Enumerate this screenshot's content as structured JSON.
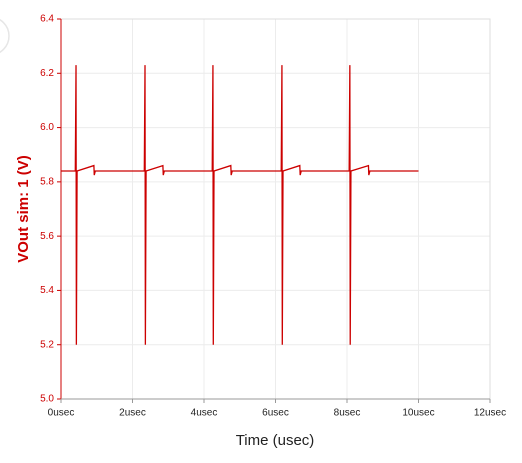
{
  "chart_data": {
    "type": "line",
    "x_label": "Time (usec)",
    "y_label": "VOut sim: 1 (V)",
    "color": "#cc0000",
    "grid": true,
    "xlim": [
      0,
      12
    ],
    "xticks": [
      {
        "value": 0,
        "label": "0usec"
      },
      {
        "value": 2,
        "label": "2usec"
      },
      {
        "value": 4,
        "label": "4usec"
      },
      {
        "value": 6,
        "label": "6usec"
      },
      {
        "value": 8,
        "label": "8usec"
      },
      {
        "value": 10,
        "label": "10usec"
      },
      {
        "value": 12,
        "label": "12usec"
      }
    ],
    "ylim": [
      5,
      6.4
    ],
    "yticks": [
      {
        "value": 5,
        "label": "5.0"
      },
      5.2,
      5.4,
      5.6,
      5.8,
      {
        "value": 6,
        "label": "6.0"
      },
      6.2,
      6.4
    ],
    "x": [
      0,
      0.4,
      0.42,
      0.43,
      0.45,
      0.92,
      0.93,
      0.96,
      2.33,
      2.35,
      2.36,
      2.38,
      2.85,
      2.86,
      2.89,
      4.23,
      4.25,
      4.26,
      4.28,
      4.75,
      4.76,
      4.79,
      6.16,
      6.18,
      6.19,
      6.21,
      6.68,
      6.69,
      6.72,
      8.06,
      8.08,
      8.09,
      8.11,
      8.6,
      8.61,
      8.64,
      10
    ],
    "values": [
      5.84,
      5.84,
      6.23,
      5.2,
      5.84,
      5.86,
      5.825,
      5.84,
      5.84,
      6.23,
      5.2,
      5.84,
      5.86,
      5.825,
      5.84,
      5.84,
      6.23,
      5.2,
      5.84,
      5.86,
      5.825,
      5.84,
      5.84,
      6.23,
      5.2,
      5.84,
      5.86,
      5.825,
      5.84,
      5.84,
      6.23,
      5.2,
      5.84,
      5.86,
      5.825,
      5.84,
      5.84
    ]
  }
}
